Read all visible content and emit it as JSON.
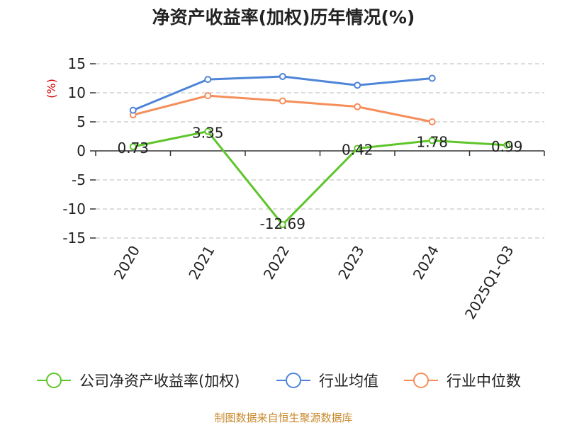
{
  "chart_data": {
    "type": "line",
    "title": "净资产收益率(加权)历年情况(%)",
    "ylabel": "(%)",
    "xlabel": "",
    "categories": [
      "2020",
      "2021",
      "2022",
      "2023",
      "2024",
      "2025Q1-Q3"
    ],
    "ylim": [
      -15,
      15
    ],
    "yticks": [
      "15",
      "10",
      "5",
      "0",
      "-5",
      "-10",
      "-15"
    ],
    "grid": true,
    "legend_position": "bottom",
    "series": [
      {
        "name": "公司净资产收益率(加权)",
        "color": "#5ec52a",
        "values": [
          0.73,
          3.35,
          -12.69,
          0.42,
          1.78,
          0.99
        ],
        "labels": [
          "0.73",
          "3.35",
          "-12.69",
          "0.42",
          "1.78",
          "0.99"
        ]
      },
      {
        "name": "行业均值",
        "color": "#4e85d8",
        "values": [
          7.0,
          12.3,
          12.8,
          11.3,
          12.5,
          null
        ]
      },
      {
        "name": "行业中位数",
        "color": "#f58e5a",
        "values": [
          6.2,
          9.5,
          8.6,
          7.6,
          5.0,
          null
        ]
      }
    ]
  },
  "source": "制图数据来自恒生聚源数据库",
  "colors": {
    "ylabel": "#d40000",
    "source": "#c8892c"
  }
}
